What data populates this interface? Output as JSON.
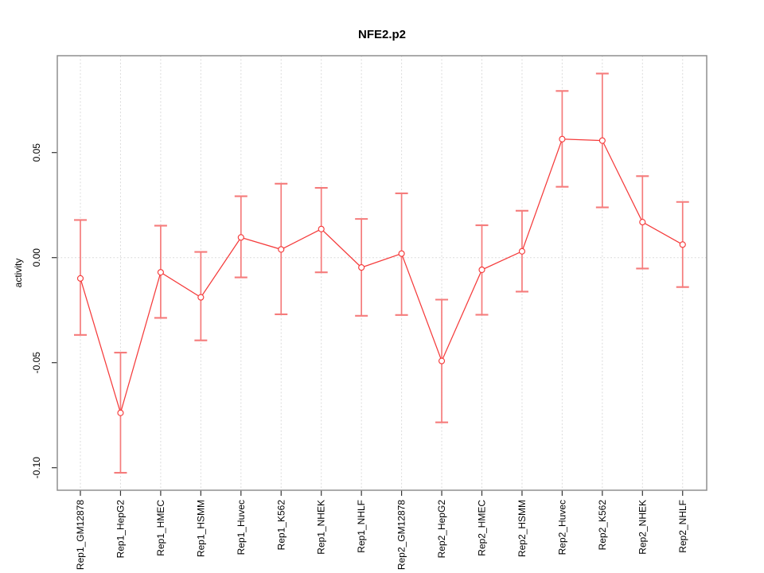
{
  "chart_data": {
    "type": "line",
    "title": "NFE2.p2",
    "xlabel": "",
    "ylabel": "activity",
    "legend": "none",
    "grid": "vertical dotted gridline at each category; horizontal dotted line at y=0",
    "categories": [
      "Rep1_GM12878",
      "Rep1_HepG2",
      "Rep1_HMEC",
      "Rep1_HSMM",
      "Rep1_Huvec",
      "Rep1_K562",
      "Rep1_NHEK",
      "Rep1_NHLF",
      "Rep2_GM12878",
      "Rep2_HepG2",
      "Rep2_HMEC",
      "Rep2_HSMM",
      "Rep2_Huvec",
      "Rep2_K562",
      "Rep2_NHEK",
      "Rep2_NHLF"
    ],
    "series": [
      {
        "name": "activity",
        "marker": "open-circle",
        "values": [
          -0.0099,
          -0.0739,
          -0.007,
          -0.0189,
          0.0096,
          0.0039,
          0.0136,
          -0.0047,
          0.0019,
          -0.0492,
          -0.0058,
          0.003,
          0.0564,
          0.0557,
          0.0169,
          0.0062
        ],
        "ci_low": [
          -0.0368,
          -0.1024,
          -0.0287,
          -0.0394,
          -0.0094,
          -0.027,
          -0.007,
          -0.0277,
          -0.0273,
          -0.0784,
          -0.0272,
          -0.0162,
          0.0337,
          0.0239,
          -0.0052,
          -0.014
        ],
        "ci_high": [
          0.0179,
          -0.0452,
          0.0152,
          0.0027,
          0.0292,
          0.0352,
          0.0332,
          0.0184,
          0.0306,
          -0.02,
          0.0154,
          0.0223,
          0.0793,
          0.0876,
          0.0388,
          0.0265
        ]
      }
    ],
    "yticks": {
      "values": [
        0.05,
        0.0,
        -0.05,
        -0.1
      ],
      "labels": [
        "0.05",
        "0.00",
        "-0.05",
        "-0.10"
      ]
    },
    "ylim": [
      -0.1107,
      0.0961
    ],
    "colors": {
      "line": "#f53b3b",
      "point_stroke": "#f53b3b",
      "point_fill": "#ffffff",
      "error_bar": "#f57c7c",
      "grid": "#d8d8d8",
      "box": "#8f8f8f",
      "tick": "#333333",
      "text": "#000000",
      "background": "#ffffff"
    }
  }
}
